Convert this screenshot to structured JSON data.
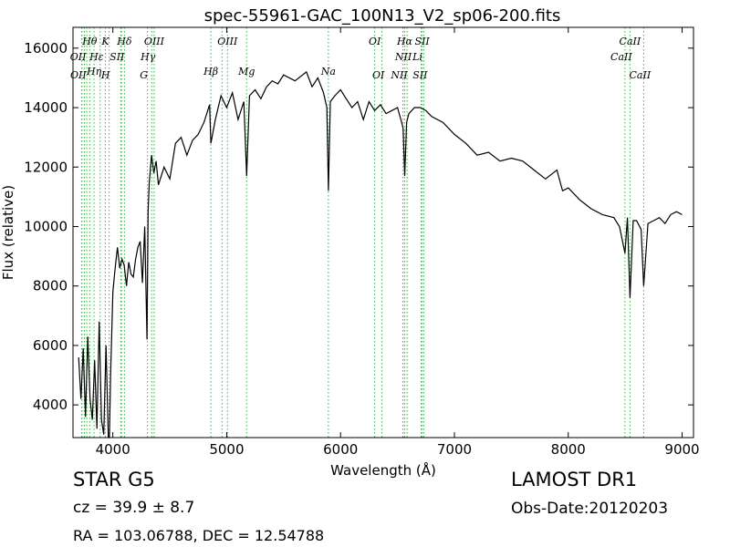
{
  "chart_data": {
    "type": "line",
    "title": "spec-55961-GAC_100N13_V2_sp06-200.fits",
    "xlabel": "Wavelength (Å)",
    "ylabel": "Flux (relative)",
    "xlim": [
      3650,
      9100
    ],
    "ylim": [
      2900,
      16700
    ],
    "xticks": [
      4000,
      5000,
      6000,
      7000,
      8000,
      9000
    ],
    "yticks": [
      4000,
      6000,
      8000,
      10000,
      12000,
      14000,
      16000
    ],
    "grid": false,
    "series": [
      {
        "x": [
          3700,
          3720,
          3740,
          3760,
          3780,
          3800,
          3820,
          3840,
          3860,
          3880,
          3900,
          3920,
          3940,
          3960,
          3970,
          3980,
          4000,
          4020,
          4040,
          4060,
          4080,
          4100,
          4120,
          4140,
          4160,
          4180,
          4200,
          4220,
          4240,
          4260,
          4280,
          4300,
          4310,
          4320,
          4340,
          4360,
          4380,
          4400,
          4450,
          4500,
          4550,
          4600,
          4650,
          4700,
          4750,
          4800,
          4850,
          4861,
          4900,
          4950,
          5000,
          5050,
          5100,
          5150,
          5175,
          5200,
          5250,
          5300,
          5350,
          5400,
          5450,
          5500,
          5600,
          5700,
          5750,
          5800,
          5850,
          5880,
          5893,
          5910,
          5950,
          6000,
          6050,
          6100,
          6150,
          6200,
          6250,
          6300,
          6350,
          6400,
          6450,
          6500,
          6530,
          6550,
          6563,
          6580,
          6600,
          6650,
          6700,
          6750,
          6800,
          6900,
          7000,
          7100,
          7200,
          7300,
          7400,
          7500,
          7600,
          7700,
          7800,
          7900,
          7950,
          8000,
          8100,
          8200,
          8300,
          8400,
          8450,
          8498,
          8520,
          8542,
          8570,
          8600,
          8640,
          8662,
          8700,
          8750,
          8800,
          8850,
          8900,
          8950,
          9000
        ],
        "values": [
          5600,
          4200,
          5900,
          3600,
          6300,
          4200,
          3500,
          5500,
          3200,
          6800,
          3500,
          3000,
          6000,
          2900,
          2900,
          5000,
          7800,
          8600,
          9300,
          8600,
          8900,
          8700,
          8000,
          8800,
          8400,
          8300,
          8900,
          9300,
          9500,
          8100,
          10000,
          6200,
          10500,
          11500,
          12400,
          11800,
          12200,
          11400,
          12000,
          11600,
          12800,
          13000,
          12400,
          12900,
          13100,
          13500,
          14100,
          12800,
          13600,
          14400,
          14000,
          14500,
          13600,
          14200,
          11700,
          14400,
          14600,
          14300,
          14700,
          14900,
          14800,
          15100,
          14900,
          15200,
          14700,
          15000,
          14500,
          14000,
          11200,
          14200,
          14400,
          14600,
          14300,
          14000,
          14200,
          13600,
          14200,
          13900,
          14100,
          13800,
          13900,
          14000,
          13600,
          13300,
          11700,
          13500,
          13800,
          14000,
          14000,
          13900,
          13700,
          13500,
          13100,
          12800,
          12400,
          12500,
          12200,
          12300,
          12200,
          11900,
          11600,
          11900,
          11200,
          11300,
          10900,
          10600,
          10400,
          10300,
          10000,
          9100,
          10300,
          7600,
          10200,
          10200,
          9900,
          8000,
          10100,
          10200,
          10300,
          10100,
          10400,
          10500,
          10400
        ]
      }
    ],
    "line_labels": [
      {
        "text": "Hθ",
        "x": 3797,
        "row": 0
      },
      {
        "text": "K",
        "x": 3934,
        "row": 0
      },
      {
        "text": "Hδ",
        "x": 4102,
        "row": 0
      },
      {
        "text": "OIII",
        "x": 4363,
        "row": 0
      },
      {
        "text": "OIII",
        "x": 5007,
        "row": 0
      },
      {
        "text": "OI",
        "x": 6300,
        "row": 0
      },
      {
        "text": "Hα",
        "x": 6563,
        "row": 0
      },
      {
        "text": "SII",
        "x": 6717,
        "row": 0
      },
      {
        "text": "CaII",
        "x": 8542,
        "row": 0
      },
      {
        "text": "OII",
        "x": 3727,
        "row": 1
      },
      {
        "text": "Hε",
        "x": 3889,
        "row": 1
      },
      {
        "text": "SII",
        "x": 4069,
        "row": 1
      },
      {
        "text": "Hγ",
        "x": 4341,
        "row": 1
      },
      {
        "text": "NII",
        "x": 6584,
        "row": 1
      },
      {
        "text": "Li",
        "x": 6708,
        "row": 1
      },
      {
        "text": "CaII",
        "x": 8498,
        "row": 1
      },
      {
        "text": "Hη",
        "x": 3835,
        "row": 2
      },
      {
        "text": "Hβ",
        "x": 4861,
        "row": 2
      },
      {
        "text": "Mg",
        "x": 5175,
        "row": 2
      },
      {
        "text": "Na",
        "x": 5893,
        "row": 2
      },
      {
        "text": "OII",
        "x": 3729,
        "row": 3
      },
      {
        "text": "H",
        "x": 3968,
        "row": 3
      },
      {
        "text": "G",
        "x": 4304,
        "row": 3
      },
      {
        "text": "OI",
        "x": 6364,
        "row": 3
      },
      {
        "text": "NII",
        "x": 6548,
        "row": 3
      },
      {
        "text": "SII",
        "x": 6731,
        "row": 3
      },
      {
        "text": "CaII",
        "x": 8662,
        "row": 3
      }
    ],
    "line_markers": [
      3727,
      3729,
      3750,
      3771,
      3797,
      3835,
      3889,
      3934,
      3968,
      4069,
      4076,
      4102,
      4304,
      4341,
      4363,
      4861,
      4959,
      5007,
      5175,
      5893,
      6300,
      6364,
      6548,
      6563,
      6584,
      6708,
      6717,
      6731,
      8498,
      8542,
      8662
    ]
  },
  "info": {
    "object": "STAR   G5",
    "survey": "LAMOST DR1",
    "redshift": "cz = 39.9  ± 8.7",
    "obs_date": "Obs-Date:20120203",
    "coords": "RA = 103.06788, DEC = 12.54788"
  }
}
